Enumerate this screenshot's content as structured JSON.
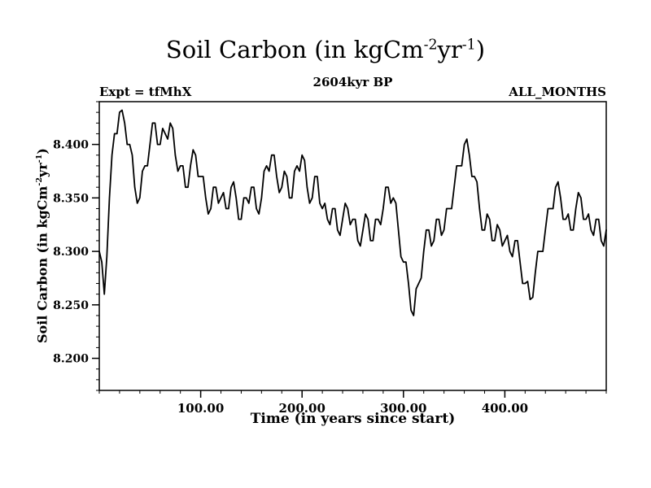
{
  "page": {
    "background": "#ffffff"
  },
  "header": {
    "title_parts": {
      "p1": "Soil Carbon (in kgCm",
      "s1": "-2",
      "p2": "yr",
      "s2": "-1",
      "p3": ")"
    },
    "subtitle": "2604kyr BP",
    "expt": "Expt = tfMhX",
    "months": "ALL_MONTHS"
  },
  "axes": {
    "xlabel": "Time (in years since start)",
    "ylabel_parts": {
      "p1": "Soil Carbon (in kgCm",
      "s1": "-2",
      "p2": "yr",
      "s2": "-1",
      "p3": ")"
    }
  },
  "chart_data": {
    "type": "line",
    "title": "Soil Carbon (in kgCm^-2yr^-1)",
    "subtitle": "2604kyr BP",
    "annotations": [
      "Expt = tfMhX",
      "ALL_MONTHS"
    ],
    "xlabel": "Time (in years since start)",
    "ylabel": "Soil Carbon (in kgCm^-2yr^-1)",
    "xlim": [
      0,
      500
    ],
    "ylim": [
      8.17,
      8.44
    ],
    "x_ticks": [
      100,
      200,
      300,
      400
    ],
    "x_tick_labels": [
      "100.00",
      "200.00",
      "300.00",
      "400.00"
    ],
    "y_ticks": [
      8.2,
      8.25,
      8.3,
      8.35,
      8.4
    ],
    "y_tick_labels": [
      "8.200",
      "8.250",
      "8.300",
      "8.350",
      "8.400"
    ],
    "x_minor_step": 20,
    "y_minor_step": 0.01,
    "grid": false,
    "legend": "none",
    "line_color": "#000000",
    "line_width": 1.8,
    "x_start": 0,
    "x_step": 2.5,
    "values": [
      8.3,
      8.29,
      8.26,
      8.295,
      8.35,
      8.39,
      8.41,
      8.41,
      8.43,
      8.432,
      8.42,
      8.4,
      8.4,
      8.39,
      8.36,
      8.345,
      8.35,
      8.375,
      8.38,
      8.38,
      8.4,
      8.42,
      8.42,
      8.4,
      8.4,
      8.415,
      8.41,
      8.405,
      8.42,
      8.415,
      8.39,
      8.375,
      8.38,
      8.38,
      8.36,
      8.36,
      8.38,
      8.395,
      8.39,
      8.37,
      8.37,
      8.37,
      8.35,
      8.335,
      8.34,
      8.36,
      8.36,
      8.345,
      8.35,
      8.355,
      8.34,
      8.34,
      8.36,
      8.365,
      8.35,
      8.33,
      8.33,
      8.35,
      8.35,
      8.345,
      8.36,
      8.36,
      8.34,
      8.335,
      8.35,
      8.375,
      8.38,
      8.375,
      8.39,
      8.39,
      8.37,
      8.355,
      8.36,
      8.375,
      8.37,
      8.35,
      8.35,
      8.375,
      8.38,
      8.375,
      8.39,
      8.385,
      8.36,
      8.345,
      8.35,
      8.37,
      8.37,
      8.345,
      8.34,
      8.345,
      8.33,
      8.325,
      8.34,
      8.34,
      8.32,
      8.315,
      8.33,
      8.345,
      8.34,
      8.325,
      8.33,
      8.33,
      8.31,
      8.305,
      8.32,
      8.335,
      8.33,
      8.31,
      8.31,
      8.33,
      8.33,
      8.325,
      8.34,
      8.36,
      8.36,
      8.345,
      8.35,
      8.345,
      8.32,
      8.295,
      8.29,
      8.29,
      8.27,
      8.245,
      8.24,
      8.265,
      8.27,
      8.275,
      8.3,
      8.32,
      8.32,
      8.305,
      8.31,
      8.33,
      8.33,
      8.315,
      8.32,
      8.34,
      8.34,
      8.34,
      8.36,
      8.38,
      8.38,
      8.38,
      8.4,
      8.405,
      8.39,
      8.37,
      8.37,
      8.365,
      8.34,
      8.32,
      8.32,
      8.335,
      8.33,
      8.31,
      8.31,
      8.325,
      8.32,
      8.305,
      8.31,
      8.315,
      8.3,
      8.295,
      8.31,
      8.31,
      8.29,
      8.27,
      8.27,
      8.272,
      8.255,
      8.257,
      8.28,
      8.3,
      8.3,
      8.3,
      8.32,
      8.34,
      8.34,
      8.34,
      8.36,
      8.365,
      8.35,
      8.33,
      8.33,
      8.335,
      8.32,
      8.32,
      8.34,
      8.355,
      8.35,
      8.33,
      8.33,
      8.335,
      8.32,
      8.315,
      8.33,
      8.33,
      8.31,
      8.305,
      8.32
    ]
  }
}
